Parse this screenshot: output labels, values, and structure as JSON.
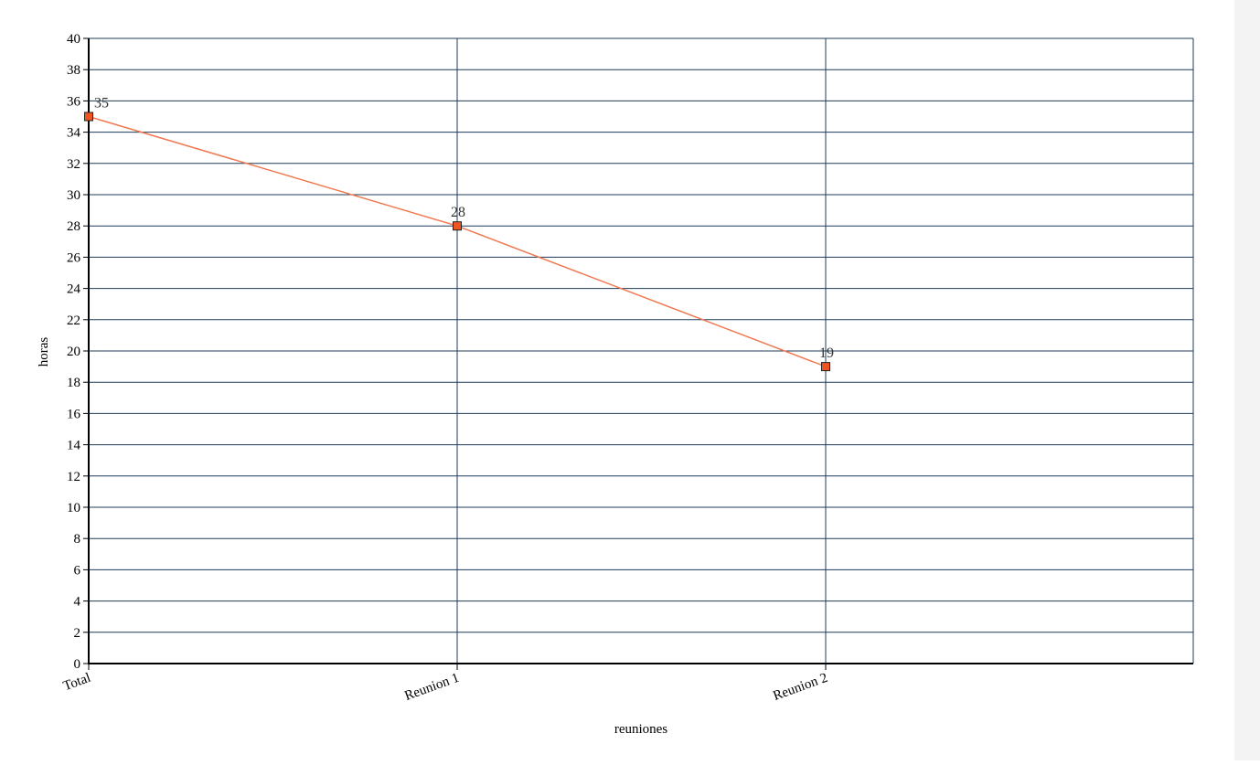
{
  "chart_data": {
    "type": "line",
    "categories": [
      "Total",
      "Reunion 1",
      "Reunion 2"
    ],
    "series": [
      {
        "values": [
          35,
          28,
          19
        ],
        "color": "#f07850",
        "marker_color": "#ee5520"
      }
    ],
    "data_labels": [
      "35",
      "28",
      "19"
    ],
    "xlabel": "reuniones",
    "ylabel": "horas",
    "ylim": [
      0,
      40
    ],
    "y_ticks": [
      "0",
      "2",
      "4",
      "6",
      "8",
      "10",
      "12",
      "14",
      "16",
      "18",
      "20",
      "22",
      "24",
      "26",
      "28",
      "30",
      "32",
      "34",
      "36",
      "38",
      "40"
    ],
    "grid": true,
    "grid_color": "#1f3b5a",
    "axis_color": "#000000"
  }
}
